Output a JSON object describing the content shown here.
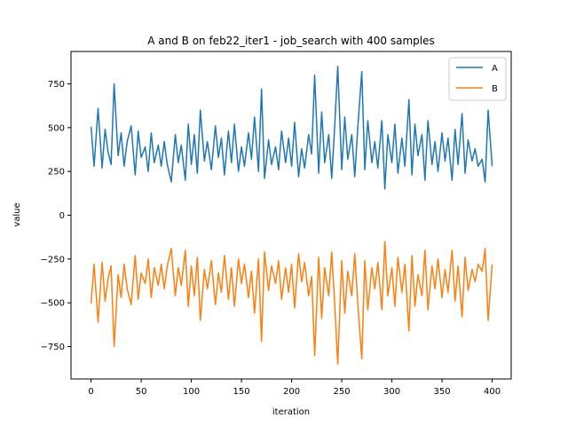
{
  "chart_data": {
    "type": "line",
    "title": "A and B on feb22_iter1 - job_search with 400 samples",
    "xlabel": "iteration",
    "ylabel": "value",
    "xlim": [
      -20,
      419
    ],
    "ylim": [
      -935,
      935
    ],
    "xticks": [
      0,
      50,
      100,
      150,
      200,
      250,
      300,
      350,
      400
    ],
    "yticks": [
      -750,
      -500,
      -250,
      0,
      250,
      500,
      750
    ],
    "xtick_labels": [
      "0",
      "50",
      "100",
      "150",
      "200",
      "250",
      "300",
      "350",
      "400"
    ],
    "ytick_labels": [
      "−750",
      "−500",
      "−250",
      "0",
      "250",
      "500",
      "750"
    ],
    "legend_position": "upper-right",
    "grid": false,
    "series": [
      {
        "name": "A",
        "color": "#1f77b4",
        "x": [
          0,
          3,
          7,
          11,
          14,
          17,
          20,
          23,
          27,
          30,
          33,
          36,
          40,
          44,
          47,
          50,
          54,
          57,
          60,
          63,
          67,
          70,
          73,
          76,
          80,
          84,
          87,
          90,
          94,
          97,
          100,
          103,
          106,
          109,
          113,
          116,
          120,
          124,
          127,
          130,
          133,
          137,
          140,
          143,
          147,
          150,
          153,
          157,
          160,
          163,
          167,
          170,
          173,
          177,
          180,
          184,
          187,
          190,
          194,
          197,
          200,
          203,
          207,
          210,
          213,
          217,
          220,
          223,
          227,
          230,
          233,
          237,
          240,
          243,
          246,
          250,
          253,
          256,
          260,
          263,
          266,
          270,
          273,
          276,
          280,
          283,
          286,
          290,
          293,
          296,
          300,
          303,
          306,
          310,
          313,
          317,
          320,
          323,
          326,
          330,
          333,
          336,
          340,
          343,
          346,
          350,
          353,
          356,
          360,
          363,
          366,
          370,
          373,
          376,
          380,
          383,
          386,
          390,
          393,
          396,
          400
        ],
        "y": [
          505,
          280,
          610,
          270,
          490,
          360,
          290,
          750,
          340,
          470,
          280,
          420,
          510,
          230,
          480,
          330,
          390,
          250,
          470,
          300,
          400,
          280,
          420,
          290,
          190,
          460,
          300,
          400,
          200,
          520,
          290,
          460,
          240,
          600,
          310,
          420,
          260,
          510,
          330,
          440,
          230,
          480,
          300,
          520,
          250,
          390,
          280,
          470,
          320,
          560,
          250,
          720,
          210,
          430,
          290,
          390,
          260,
          480,
          300,
          440,
          280,
          530,
          220,
          380,
          270,
          460,
          350,
          800,
          240,
          590,
          300,
          460,
          210,
          510,
          850,
          260,
          560,
          320,
          460,
          220,
          500,
          820,
          260,
          540,
          300,
          420,
          270,
          540,
          150,
          460,
          300,
          520,
          240,
          440,
          280,
          660,
          230,
          520,
          340,
          460,
          200,
          540,
          290,
          420,
          250,
          470,
          310,
          440,
          200,
          490,
          290,
          580,
          240,
          430,
          310,
          380,
          280,
          320,
          190,
          600,
          280
        ]
      },
      {
        "name": "B",
        "color": "#ff7f0e",
        "x": [
          0,
          3,
          7,
          11,
          14,
          17,
          20,
          23,
          27,
          30,
          33,
          36,
          40,
          44,
          47,
          50,
          54,
          57,
          60,
          63,
          67,
          70,
          73,
          76,
          80,
          84,
          87,
          90,
          94,
          97,
          100,
          103,
          106,
          109,
          113,
          116,
          120,
          124,
          127,
          130,
          133,
          137,
          140,
          143,
          147,
          150,
          153,
          157,
          160,
          163,
          167,
          170,
          173,
          177,
          180,
          184,
          187,
          190,
          194,
          197,
          200,
          203,
          207,
          210,
          213,
          217,
          220,
          223,
          227,
          230,
          233,
          237,
          240,
          243,
          246,
          250,
          253,
          256,
          260,
          263,
          266,
          270,
          273,
          276,
          280,
          283,
          286,
          290,
          293,
          296,
          300,
          303,
          306,
          310,
          313,
          317,
          320,
          323,
          326,
          330,
          333,
          336,
          340,
          343,
          346,
          350,
          353,
          356,
          360,
          363,
          366,
          370,
          373,
          376,
          380,
          383,
          386,
          390,
          393,
          396,
          400
        ],
        "y": [
          -505,
          -280,
          -610,
          -270,
          -490,
          -360,
          -290,
          -750,
          -340,
          -470,
          -280,
          -420,
          -510,
          -230,
          -480,
          -330,
          -390,
          -250,
          -470,
          -300,
          -400,
          -280,
          -420,
          -290,
          -190,
          -460,
          -300,
          -400,
          -200,
          -520,
          -290,
          -460,
          -240,
          -600,
          -310,
          -420,
          -260,
          -510,
          -330,
          -440,
          -230,
          -480,
          -300,
          -520,
          -250,
          -390,
          -280,
          -470,
          -320,
          -560,
          -250,
          -720,
          -210,
          -430,
          -290,
          -390,
          -260,
          -480,
          -300,
          -440,
          -280,
          -530,
          -220,
          -380,
          -270,
          -460,
          -350,
          -800,
          -240,
          -590,
          -300,
          -460,
          -210,
          -510,
          -850,
          -260,
          -560,
          -320,
          -460,
          -220,
          -500,
          -820,
          -260,
          -540,
          -300,
          -420,
          -270,
          -540,
          -150,
          -460,
          -300,
          -520,
          -240,
          -440,
          -280,
          -660,
          -230,
          -520,
          -340,
          -460,
          -200,
          -540,
          -290,
          -420,
          -250,
          -470,
          -310,
          -440,
          -200,
          -490,
          -290,
          -580,
          -240,
          -430,
          -310,
          -380,
          -280,
          -320,
          -190,
          -600,
          -280
        ]
      }
    ]
  }
}
